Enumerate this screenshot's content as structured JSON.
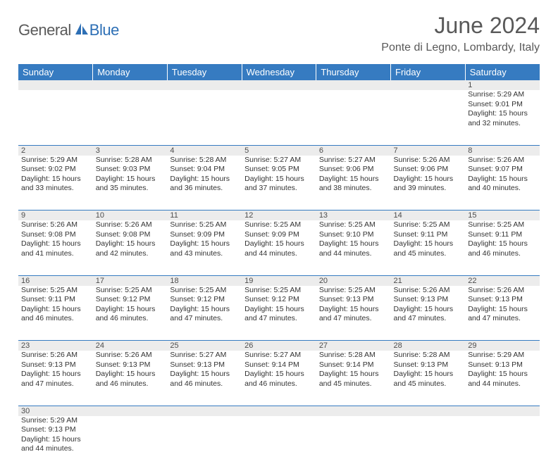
{
  "brand": {
    "part1": "General",
    "part2": "Blue"
  },
  "title": "June 2024",
  "location": "Ponte di Legno, Lombardy, Italy",
  "colors": {
    "header_bg": "#367bc1",
    "header_text": "#ffffff",
    "daynum_bg": "#ececec",
    "text": "#333333",
    "title": "#595959"
  },
  "weekdays": [
    "Sunday",
    "Monday",
    "Tuesday",
    "Wednesday",
    "Thursday",
    "Friday",
    "Saturday"
  ],
  "weeks": [
    [
      null,
      null,
      null,
      null,
      null,
      null,
      {
        "n": 1,
        "rise": "5:29 AM",
        "set": "9:01 PM",
        "dl": "15 hours and 32 minutes."
      }
    ],
    [
      {
        "n": 2,
        "rise": "5:29 AM",
        "set": "9:02 PM",
        "dl": "15 hours and 33 minutes."
      },
      {
        "n": 3,
        "rise": "5:28 AM",
        "set": "9:03 PM",
        "dl": "15 hours and 35 minutes."
      },
      {
        "n": 4,
        "rise": "5:28 AM",
        "set": "9:04 PM",
        "dl": "15 hours and 36 minutes."
      },
      {
        "n": 5,
        "rise": "5:27 AM",
        "set": "9:05 PM",
        "dl": "15 hours and 37 minutes."
      },
      {
        "n": 6,
        "rise": "5:27 AM",
        "set": "9:06 PM",
        "dl": "15 hours and 38 minutes."
      },
      {
        "n": 7,
        "rise": "5:26 AM",
        "set": "9:06 PM",
        "dl": "15 hours and 39 minutes."
      },
      {
        "n": 8,
        "rise": "5:26 AM",
        "set": "9:07 PM",
        "dl": "15 hours and 40 minutes."
      }
    ],
    [
      {
        "n": 9,
        "rise": "5:26 AM",
        "set": "9:08 PM",
        "dl": "15 hours and 41 minutes."
      },
      {
        "n": 10,
        "rise": "5:26 AM",
        "set": "9:08 PM",
        "dl": "15 hours and 42 minutes."
      },
      {
        "n": 11,
        "rise": "5:25 AM",
        "set": "9:09 PM",
        "dl": "15 hours and 43 minutes."
      },
      {
        "n": 12,
        "rise": "5:25 AM",
        "set": "9:09 PM",
        "dl": "15 hours and 44 minutes."
      },
      {
        "n": 13,
        "rise": "5:25 AM",
        "set": "9:10 PM",
        "dl": "15 hours and 44 minutes."
      },
      {
        "n": 14,
        "rise": "5:25 AM",
        "set": "9:11 PM",
        "dl": "15 hours and 45 minutes."
      },
      {
        "n": 15,
        "rise": "5:25 AM",
        "set": "9:11 PM",
        "dl": "15 hours and 46 minutes."
      }
    ],
    [
      {
        "n": 16,
        "rise": "5:25 AM",
        "set": "9:11 PM",
        "dl": "15 hours and 46 minutes."
      },
      {
        "n": 17,
        "rise": "5:25 AM",
        "set": "9:12 PM",
        "dl": "15 hours and 46 minutes."
      },
      {
        "n": 18,
        "rise": "5:25 AM",
        "set": "9:12 PM",
        "dl": "15 hours and 47 minutes."
      },
      {
        "n": 19,
        "rise": "5:25 AM",
        "set": "9:12 PM",
        "dl": "15 hours and 47 minutes."
      },
      {
        "n": 20,
        "rise": "5:25 AM",
        "set": "9:13 PM",
        "dl": "15 hours and 47 minutes."
      },
      {
        "n": 21,
        "rise": "5:26 AM",
        "set": "9:13 PM",
        "dl": "15 hours and 47 minutes."
      },
      {
        "n": 22,
        "rise": "5:26 AM",
        "set": "9:13 PM",
        "dl": "15 hours and 47 minutes."
      }
    ],
    [
      {
        "n": 23,
        "rise": "5:26 AM",
        "set": "9:13 PM",
        "dl": "15 hours and 47 minutes."
      },
      {
        "n": 24,
        "rise": "5:26 AM",
        "set": "9:13 PM",
        "dl": "15 hours and 46 minutes."
      },
      {
        "n": 25,
        "rise": "5:27 AM",
        "set": "9:13 PM",
        "dl": "15 hours and 46 minutes."
      },
      {
        "n": 26,
        "rise": "5:27 AM",
        "set": "9:14 PM",
        "dl": "15 hours and 46 minutes."
      },
      {
        "n": 27,
        "rise": "5:28 AM",
        "set": "9:14 PM",
        "dl": "15 hours and 45 minutes."
      },
      {
        "n": 28,
        "rise": "5:28 AM",
        "set": "9:13 PM",
        "dl": "15 hours and 45 minutes."
      },
      {
        "n": 29,
        "rise": "5:29 AM",
        "set": "9:13 PM",
        "dl": "15 hours and 44 minutes."
      }
    ],
    [
      {
        "n": 30,
        "rise": "5:29 AM",
        "set": "9:13 PM",
        "dl": "15 hours and 44 minutes."
      },
      null,
      null,
      null,
      null,
      null,
      null
    ]
  ],
  "labels": {
    "sunrise": "Sunrise:",
    "sunset": "Sunset:",
    "daylight": "Daylight:"
  }
}
